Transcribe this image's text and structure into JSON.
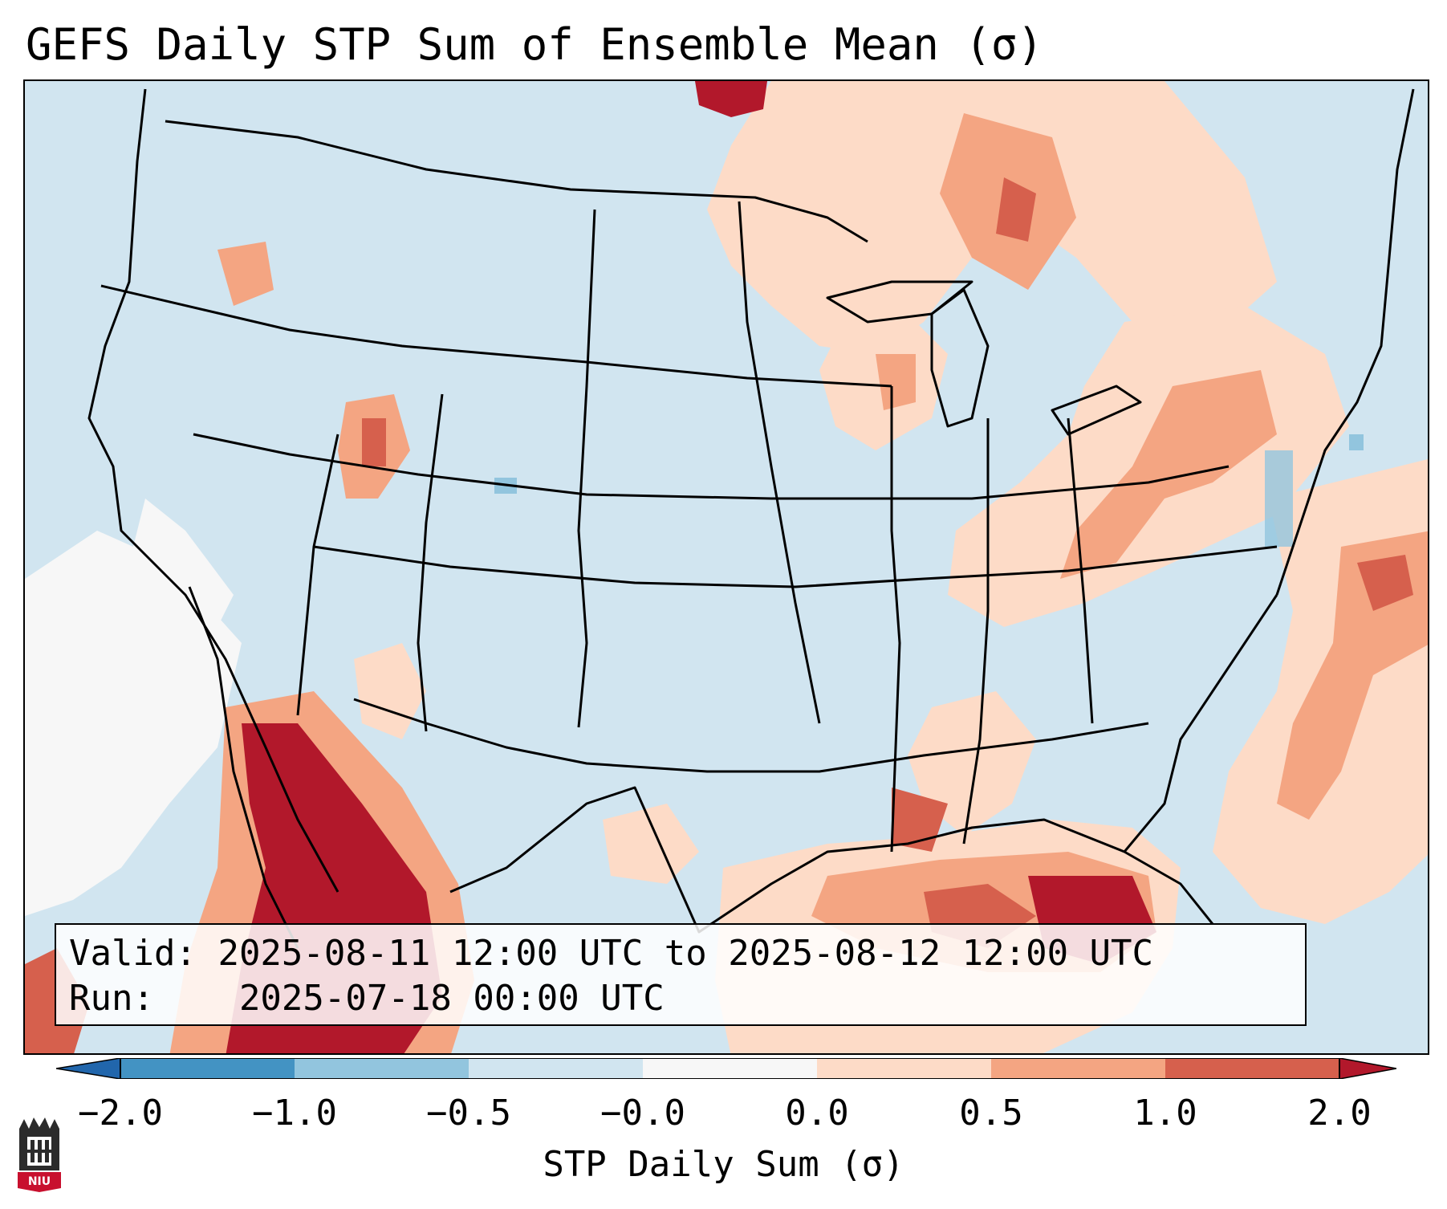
{
  "title": "GEFS Daily STP Sum of Ensemble Mean (σ)",
  "valid_box": {
    "valid_label": "Valid:",
    "valid_value": "2025-08-11 12:00 UTC to 2025-08-12 12:00 UTC",
    "run_label": "Run:",
    "run_value": "2025-07-18 00:00 UTC"
  },
  "colorbar": {
    "label": "STP Daily Sum (σ)",
    "ticks": [
      "−2.0",
      "−1.0",
      "−0.5",
      "−0.0",
      "0.0",
      "0.5",
      "1.0",
      "2.0"
    ],
    "colors": [
      "#4393c3",
      "#92c5de",
      "#d1e5f0",
      "#f7f7f7",
      "#fddbc7",
      "#f4a582",
      "#d6604d",
      "#b2182b"
    ],
    "under_color": "#2166ac",
    "over_color": "#b2182b"
  },
  "logo": {
    "text": "NIU",
    "icon": "university-logo-icon"
  },
  "map": {
    "background_color": "#d1e5f0",
    "line_color": "#000000"
  }
}
